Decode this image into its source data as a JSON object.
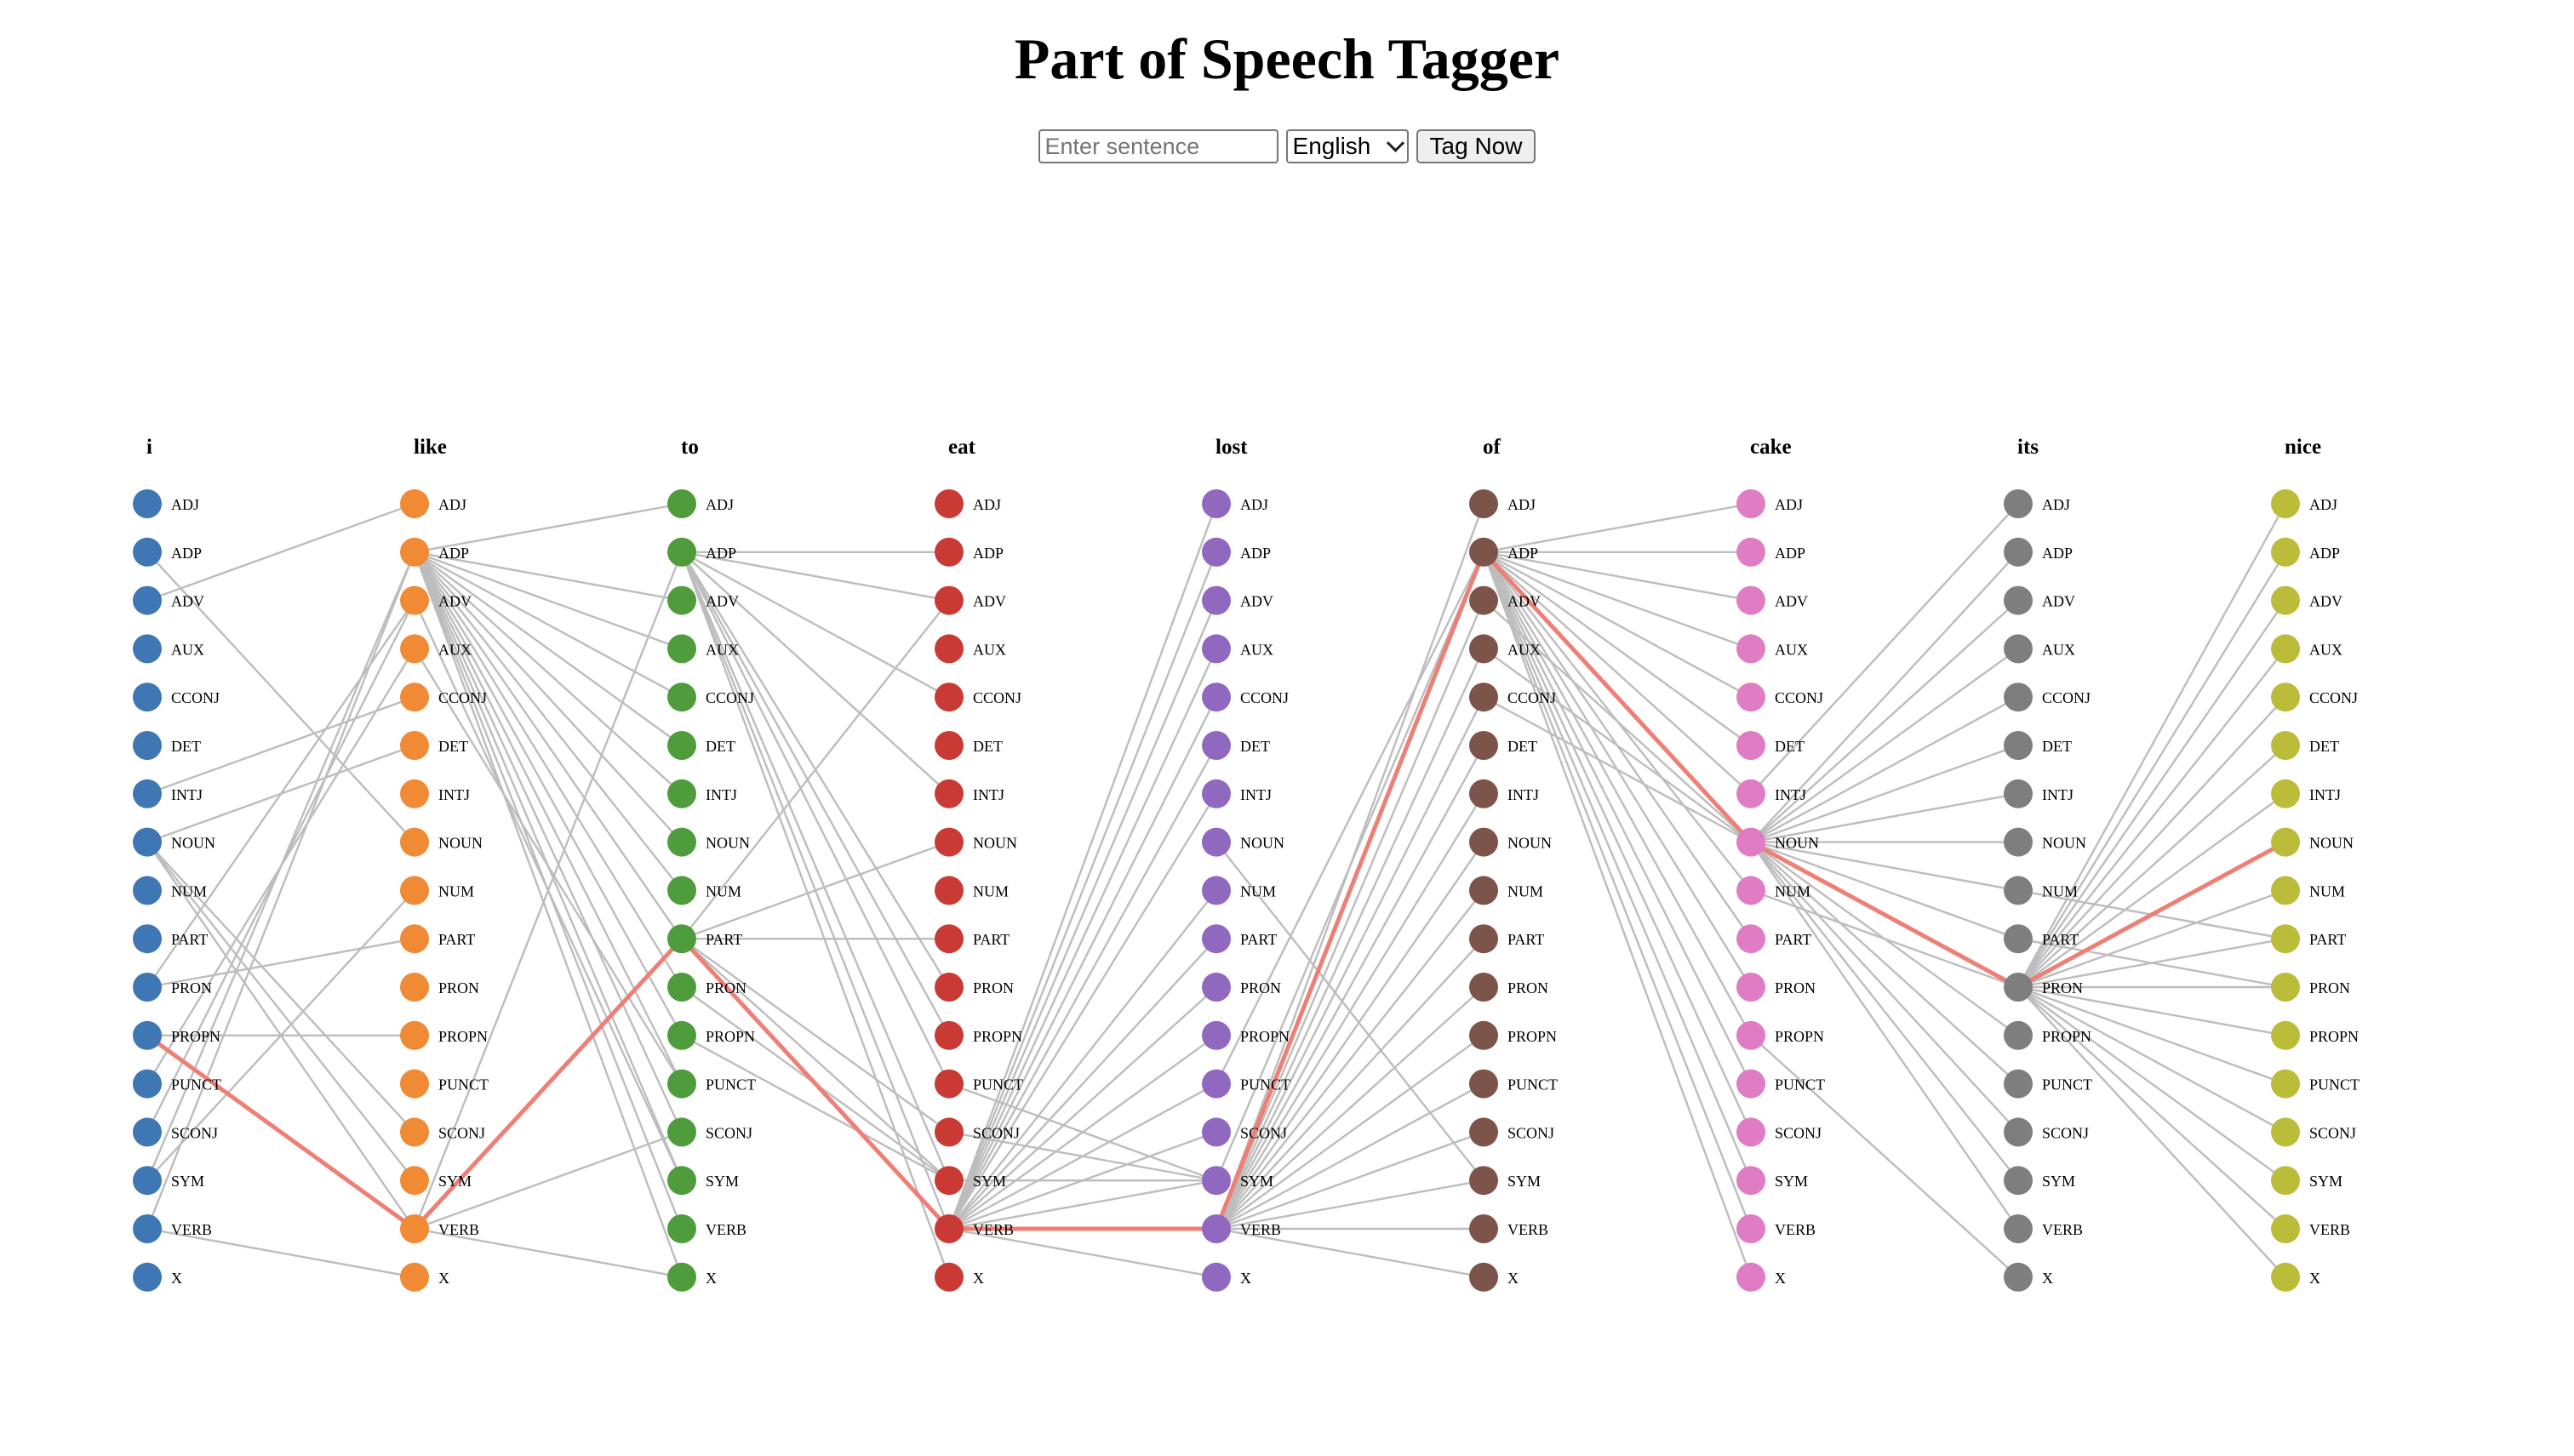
{
  "title": "Part of Speech Tagger",
  "controls": {
    "input_placeholder": "Enter sentence",
    "input_value": "",
    "language_selected": "English",
    "tag_button_label": "Tag Now"
  },
  "diagram": {
    "words": [
      "i",
      "like",
      "to",
      "eat",
      "lost",
      "of",
      "cake",
      "its",
      "nice"
    ],
    "tags": [
      "ADJ",
      "ADP",
      "ADV",
      "AUX",
      "CCONJ",
      "DET",
      "INTJ",
      "NOUN",
      "NUM",
      "PART",
      "PRON",
      "PROPN",
      "PUNCT",
      "SCONJ",
      "SYM",
      "VERB",
      "X"
    ],
    "word_colors": [
      "#3f76b4",
      "#f08a35",
      "#4f9c3c",
      "#c93a34",
      "#9068bf",
      "#7d5449",
      "#e07cc3",
      "#7e7e7e",
      "#bcbc3b"
    ],
    "edge_color": "#bdbdbd",
    "highlight_color": "#ee7f76",
    "best_path": [
      "PROPN",
      "VERB",
      "PART",
      "VERB",
      "VERB",
      "ADP",
      "NOUN",
      "PRON",
      "NOUN"
    ],
    "transitions": [
      {
        "from": 0,
        "to": 1,
        "pairs": [
          [
            "ADV",
            "ADJ"
          ],
          [
            "ADP",
            "NOUN"
          ],
          [
            "INTJ",
            "CCONJ"
          ],
          [
            "NOUN",
            "DET"
          ],
          [
            "NOUN",
            "SCONJ"
          ],
          [
            "NOUN",
            "SYM"
          ],
          [
            "NOUN",
            "VERB"
          ],
          [
            "PRON",
            "ADV"
          ],
          [
            "PRON",
            "PART"
          ],
          [
            "PROPN",
            "PROPN"
          ],
          [
            "PROPN",
            "VERB"
          ],
          [
            "PUNCT",
            "AUX"
          ],
          [
            "SCONJ",
            "ADV"
          ],
          [
            "SYM",
            "ADP"
          ],
          [
            "SYM",
            "NUM"
          ],
          [
            "VERB",
            "ADP"
          ],
          [
            "VERB",
            "X"
          ]
        ]
      },
      {
        "from": 1,
        "to": 2,
        "pairs": [
          [
            "ADP",
            "ADJ"
          ],
          [
            "ADP",
            "ADV"
          ],
          [
            "ADP",
            "AUX"
          ],
          [
            "ADP",
            "CCONJ"
          ],
          [
            "ADP",
            "DET"
          ],
          [
            "ADP",
            "INTJ"
          ],
          [
            "ADP",
            "NOUN"
          ],
          [
            "ADP",
            "NUM"
          ],
          [
            "ADP",
            "PART"
          ],
          [
            "ADP",
            "PRON"
          ],
          [
            "ADP",
            "PROPN"
          ],
          [
            "ADP",
            "PUNCT"
          ],
          [
            "ADP",
            "SCONJ"
          ],
          [
            "ADP",
            "SYM"
          ],
          [
            "ADP",
            "VERB"
          ],
          [
            "ADP",
            "X"
          ],
          [
            "ADV",
            "SYM"
          ],
          [
            "AUX",
            "PUNCT"
          ],
          [
            "VERB",
            "ADP"
          ],
          [
            "VERB",
            "SCONJ"
          ],
          [
            "VERB",
            "X"
          ]
        ]
      },
      {
        "from": 2,
        "to": 3,
        "pairs": [
          [
            "ADP",
            "ADP"
          ],
          [
            "ADP",
            "ADV"
          ],
          [
            "ADP",
            "CCONJ"
          ],
          [
            "ADP",
            "INTJ"
          ],
          [
            "ADP",
            "PRON"
          ],
          [
            "ADP",
            "PROPN"
          ],
          [
            "ADP",
            "PUNCT"
          ],
          [
            "ADP",
            "SYM"
          ],
          [
            "ADP",
            "VERB"
          ],
          [
            "ADP",
            "X"
          ],
          [
            "PART",
            "ADV"
          ],
          [
            "PART",
            "NOUN"
          ],
          [
            "PART",
            "PART"
          ],
          [
            "PART",
            "SCONJ"
          ],
          [
            "PART",
            "SYM"
          ],
          [
            "PRON",
            "SYM"
          ],
          [
            "PROPN",
            "SYM"
          ]
        ]
      },
      {
        "from": 3,
        "to": 4,
        "pairs": [
          [
            "VERB",
            "ADJ"
          ],
          [
            "VERB",
            "ADP"
          ],
          [
            "VERB",
            "ADV"
          ],
          [
            "VERB",
            "AUX"
          ],
          [
            "VERB",
            "CCONJ"
          ],
          [
            "VERB",
            "DET"
          ],
          [
            "VERB",
            "INTJ"
          ],
          [
            "VERB",
            "NUM"
          ],
          [
            "VERB",
            "PART"
          ],
          [
            "VERB",
            "PRON"
          ],
          [
            "VERB",
            "PROPN"
          ],
          [
            "VERB",
            "PUNCT"
          ],
          [
            "VERB",
            "SCONJ"
          ],
          [
            "VERB",
            "SYM"
          ],
          [
            "VERB",
            "X"
          ],
          [
            "SYM",
            "SYM"
          ],
          [
            "PUNCT",
            "SYM"
          ],
          [
            "SCONJ",
            "SYM"
          ]
        ]
      },
      {
        "from": 4,
        "to": 5,
        "pairs": [
          [
            "VERB",
            "ADJ"
          ],
          [
            "VERB",
            "ADV"
          ],
          [
            "VERB",
            "AUX"
          ],
          [
            "VERB",
            "CCONJ"
          ],
          [
            "VERB",
            "DET"
          ],
          [
            "VERB",
            "INTJ"
          ],
          [
            "VERB",
            "NOUN"
          ],
          [
            "VERB",
            "NUM"
          ],
          [
            "VERB",
            "PART"
          ],
          [
            "VERB",
            "PRON"
          ],
          [
            "VERB",
            "PROPN"
          ],
          [
            "VERB",
            "PUNCT"
          ],
          [
            "VERB",
            "SCONJ"
          ],
          [
            "VERB",
            "SYM"
          ],
          [
            "VERB",
            "VERB"
          ],
          [
            "VERB",
            "X"
          ],
          [
            "NOUN",
            "SYM"
          ],
          [
            "SYM",
            "ADP"
          ],
          [
            "PUNCT",
            "ADP"
          ]
        ]
      },
      {
        "from": 5,
        "to": 6,
        "pairs": [
          [
            "ADP",
            "ADJ"
          ],
          [
            "ADP",
            "ADP"
          ],
          [
            "ADP",
            "ADV"
          ],
          [
            "ADP",
            "AUX"
          ],
          [
            "ADP",
            "CCONJ"
          ],
          [
            "ADP",
            "DET"
          ],
          [
            "ADP",
            "INTJ"
          ],
          [
            "ADP",
            "NUM"
          ],
          [
            "ADP",
            "PART"
          ],
          [
            "ADP",
            "PRON"
          ],
          [
            "ADP",
            "PROPN"
          ],
          [
            "ADP",
            "PUNCT"
          ],
          [
            "ADP",
            "SCONJ"
          ],
          [
            "ADP",
            "SYM"
          ],
          [
            "ADP",
            "VERB"
          ],
          [
            "ADP",
            "X"
          ],
          [
            "ADV",
            "NOUN"
          ],
          [
            "AUX",
            "NOUN"
          ],
          [
            "CCONJ",
            "NOUN"
          ]
        ]
      },
      {
        "from": 6,
        "to": 7,
        "pairs": [
          [
            "NOUN",
            "ADP"
          ],
          [
            "NOUN",
            "ADV"
          ],
          [
            "NOUN",
            "AUX"
          ],
          [
            "NOUN",
            "CCONJ"
          ],
          [
            "NOUN",
            "DET"
          ],
          [
            "NOUN",
            "INTJ"
          ],
          [
            "NOUN",
            "NOUN"
          ],
          [
            "NOUN",
            "NUM"
          ],
          [
            "NOUN",
            "PART"
          ],
          [
            "NOUN",
            "PROPN"
          ],
          [
            "NOUN",
            "PUNCT"
          ],
          [
            "NOUN",
            "SCONJ"
          ],
          [
            "NOUN",
            "SYM"
          ],
          [
            "NOUN",
            "VERB"
          ],
          [
            "INTJ",
            "ADJ"
          ],
          [
            "NUM",
            "PRON"
          ],
          [
            "PROPN",
            "X"
          ]
        ]
      },
      {
        "from": 7,
        "to": 8,
        "pairs": [
          [
            "PRON",
            "ADJ"
          ],
          [
            "PRON",
            "ADP"
          ],
          [
            "PRON",
            "ADV"
          ],
          [
            "PRON",
            "AUX"
          ],
          [
            "PRON",
            "CCONJ"
          ],
          [
            "PRON",
            "DET"
          ],
          [
            "PRON",
            "INTJ"
          ],
          [
            "PRON",
            "NUM"
          ],
          [
            "PRON",
            "PART"
          ],
          [
            "PRON",
            "PRON"
          ],
          [
            "PRON",
            "PROPN"
          ],
          [
            "PRON",
            "PUNCT"
          ],
          [
            "PRON",
            "SCONJ"
          ],
          [
            "PRON",
            "SYM"
          ],
          [
            "PRON",
            "VERB"
          ],
          [
            "PRON",
            "X"
          ],
          [
            "NUM",
            "PART"
          ],
          [
            "PART",
            "PRON"
          ]
        ]
      }
    ]
  }
}
